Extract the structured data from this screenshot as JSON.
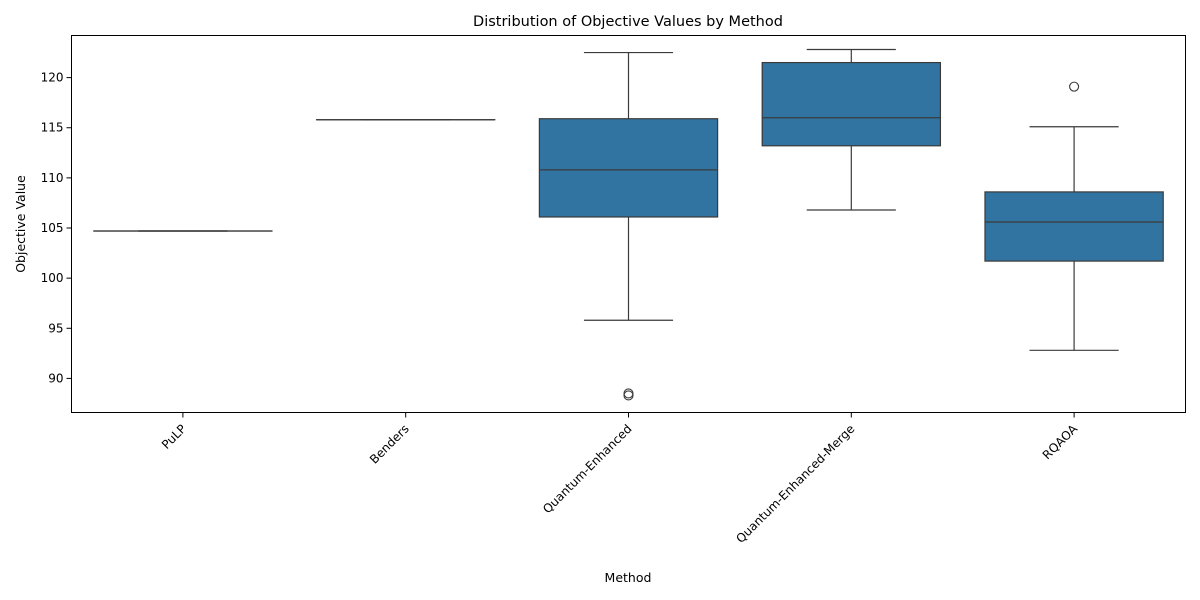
{
  "chart_data": {
    "type": "box",
    "title": "Distribution of Objective Values by Method",
    "xlabel": "Method",
    "ylabel": "Objective Value",
    "ylim": [
      86.6,
      124.2
    ],
    "yticks": [
      90,
      95,
      100,
      105,
      110,
      115,
      120
    ],
    "box_color": "#3274a1",
    "grid": false,
    "categories": [
      "PuLP",
      "Benders",
      "Quantum-Enhanced",
      "Quantum-Enhanced-Merge",
      "RQAOA"
    ],
    "boxes": [
      {
        "category": "PuLP",
        "whisker_low": 104.7,
        "q1": 104.7,
        "median": 104.7,
        "q3": 104.7,
        "whisker_high": 104.7,
        "outliers": []
      },
      {
        "category": "Benders",
        "whisker_low": 115.8,
        "q1": 115.8,
        "median": 115.8,
        "q3": 115.8,
        "whisker_high": 115.8,
        "outliers": []
      },
      {
        "category": "Quantum-Enhanced",
        "whisker_low": 95.8,
        "q1": 106.1,
        "median": 110.8,
        "q3": 115.9,
        "whisker_high": 122.5,
        "outliers": [
          88.5,
          88.3
        ]
      },
      {
        "category": "Quantum-Enhanced-Merge",
        "whisker_low": 106.8,
        "q1": 113.2,
        "median": 116.0,
        "q3": 121.5,
        "whisker_high": 122.8,
        "outliers": []
      },
      {
        "category": "RQAOA",
        "whisker_low": 92.8,
        "q1": 101.7,
        "median": 105.6,
        "q3": 108.6,
        "whisker_high": 115.1,
        "outliers": [
          119.1
        ]
      }
    ]
  }
}
